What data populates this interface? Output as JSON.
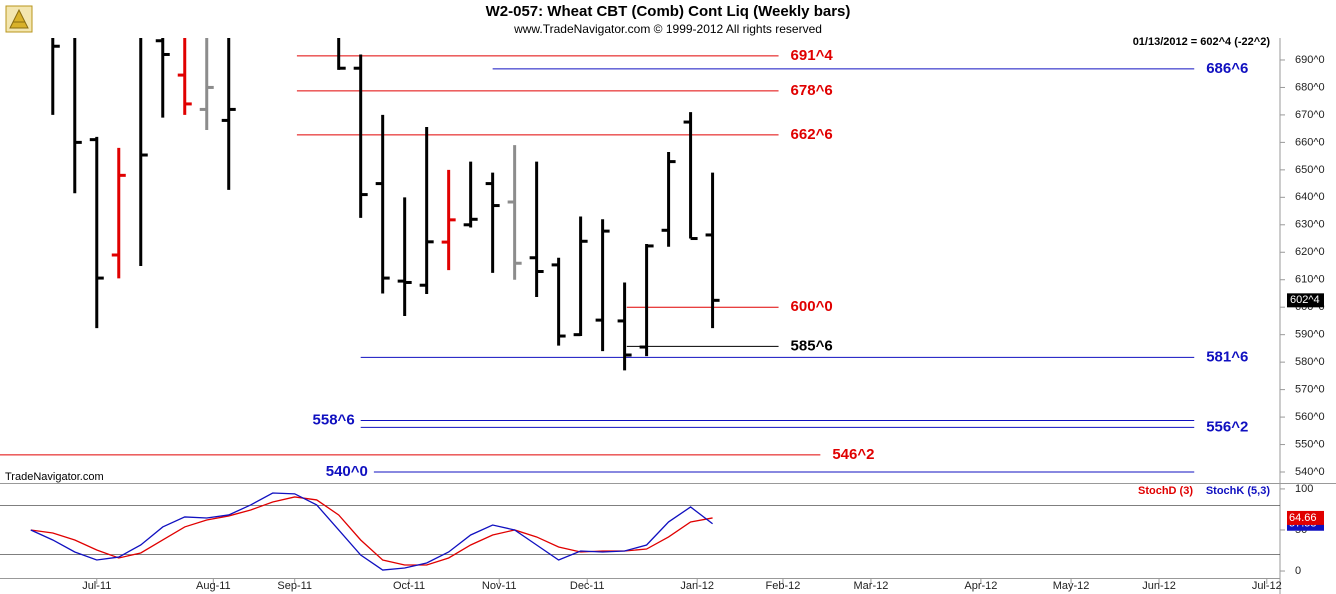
{
  "chart_data": [
    {
      "type": "ohlc",
      "title": "W2-057:  Wheat CBT (Comb) Cont Liq  (Weekly bars)",
      "subtitle": "www.TradeNavigator.com © 1999-2012 All rights reserved",
      "annotation": "01/13/2012 = 602^4 (-22^2)",
      "watermark": "TradeNavigator.com",
      "last_label": "602^4",
      "xlim": [
        -2.4,
        55.8
      ],
      "ylim": [
        536,
        698
      ],
      "yticks": [
        {
          "value": 540,
          "label": "540^0"
        },
        {
          "value": 550,
          "label": "550^0"
        },
        {
          "value": 560,
          "label": "560^0"
        },
        {
          "value": 570,
          "label": "570^0"
        },
        {
          "value": 580,
          "label": "580^0"
        },
        {
          "value": 590,
          "label": "590^0"
        },
        {
          "value": 600,
          "label": "600^0"
        },
        {
          "value": 610,
          "label": "610^0"
        },
        {
          "value": 620,
          "label": "620^0"
        },
        {
          "value": 630,
          "label": "630^0"
        },
        {
          "value": 640,
          "label": "640^0"
        },
        {
          "value": 650,
          "label": "650^0"
        },
        {
          "value": 660,
          "label": "660^0"
        },
        {
          "value": 670,
          "label": "670^0"
        },
        {
          "value": 680,
          "label": "680^0"
        },
        {
          "value": 690,
          "label": "690^0"
        }
      ],
      "x": [
        0,
        1,
        2,
        3,
        4,
        5,
        6,
        7,
        8,
        13,
        14,
        15,
        16,
        17,
        18,
        19,
        20,
        21,
        22,
        23,
        24,
        25,
        26,
        27,
        28,
        29,
        30
      ],
      "open": [
        700,
        700,
        661,
        619,
        700,
        697,
        684.5,
        672,
        668,
        700,
        687,
        645,
        609.5,
        608,
        623.7,
        630,
        645,
        638.3,
        618,
        615.4,
        590,
        595.3,
        595,
        585.5,
        628,
        667.4,
        626.3
      ],
      "high": [
        705,
        705,
        662,
        658,
        705,
        705,
        705,
        705,
        705,
        705,
        692,
        670,
        640,
        665.6,
        650,
        653,
        649,
        659,
        653,
        618,
        633,
        632,
        609,
        623,
        656.5,
        671,
        649
      ],
      "low": [
        670,
        641.5,
        592.4,
        610.5,
        615,
        669,
        670,
        664.5,
        642.7,
        686.4,
        632.5,
        605,
        596.8,
        604.8,
        613.5,
        629,
        612.5,
        610,
        603.7,
        586,
        589.5,
        584,
        577,
        582.2,
        622,
        625,
        592.4
      ],
      "close": [
        695,
        660,
        610.6,
        648,
        655.4,
        692,
        674,
        680,
        672,
        687,
        641,
        610.6,
        609,
        623.8,
        631.8,
        632,
        637,
        616,
        613,
        589.5,
        624,
        627.7,
        582.6,
        622.3,
        653,
        625,
        602.5
      ],
      "colors": [
        "#000000",
        "#000000",
        "#000000",
        "#e00000",
        "#000000",
        "#000000",
        "#e00000",
        "#8c8c8c",
        "#000000",
        "#000000",
        "#000000",
        "#000000",
        "#000000",
        "#000000",
        "#e00000",
        "#000000",
        "#000000",
        "#8c8c8c",
        "#000000",
        "#000000",
        "#000000",
        "#000000",
        "#000000",
        "#000000",
        "#000000",
        "#000000",
        "#000000"
      ],
      "levels": [
        {
          "label": "691^4",
          "value": 691.5,
          "color": "#e00000",
          "x_start": 11.1,
          "x_end": 33.0,
          "label_side": "right"
        },
        {
          "label": "686^6",
          "value": 686.75,
          "color": "#1010c0",
          "x_start": 20.0,
          "x_end": 51.9,
          "label_side": "right"
        },
        {
          "label": "678^6",
          "value": 678.75,
          "color": "#e00000",
          "x_start": 11.1,
          "x_end": 33.0,
          "label_side": "right"
        },
        {
          "label": "662^6",
          "value": 662.75,
          "color": "#e00000",
          "x_start": 11.1,
          "x_end": 33.0,
          "label_side": "right"
        },
        {
          "label": "600^0",
          "value": 600,
          "color": "#e00000",
          "x_start": 26.1,
          "x_end": 33.0,
          "label_side": "right"
        },
        {
          "label": "585^6",
          "value": 585.75,
          "color": "#000000",
          "x_start": 26.1,
          "x_end": 33.0,
          "label_side": "right"
        },
        {
          "label": "581^6",
          "value": 581.75,
          "color": "#1010c0",
          "x_start": 14.0,
          "x_end": 51.9,
          "label_side": "right"
        },
        {
          "label": "558^6",
          "value": 558.75,
          "color": "#1010c0",
          "x_start": 14.0,
          "x_end": 51.9,
          "label_side": "left"
        },
        {
          "label": "556^2",
          "value": 556.25,
          "color": "#1010c0",
          "x_start": 14.0,
          "x_end": 51.9,
          "label_side": "right"
        },
        {
          "label": "546^2",
          "value": 546.25,
          "color": "#e00000",
          "x_start": -2.4,
          "x_end": 34.9,
          "label_side": "right"
        },
        {
          "label": "540^0",
          "value": 540,
          "color": "#1010c0",
          "x_start": 14.6,
          "x_end": 51.9,
          "label_side": "left"
        }
      ]
    },
    {
      "type": "line",
      "xlim": [
        -2.4,
        55.8
      ],
      "ylim": [
        -8.5,
        106
      ],
      "yticks": [
        0,
        50,
        100
      ],
      "levels": [
        80,
        20
      ],
      "xticks": [
        {
          "value": 2,
          "label": "Jul-11"
        },
        {
          "value": 7.3,
          "label": "Aug-11"
        },
        {
          "value": 11,
          "label": "Sep-11"
        },
        {
          "value": 16.2,
          "label": "Oct-11"
        },
        {
          "value": 20.3,
          "label": "Nov-11"
        },
        {
          "value": 24.3,
          "label": "Dec-11"
        },
        {
          "value": 29.3,
          "label": "Jan-12"
        },
        {
          "value": 33.2,
          "label": "Feb-12"
        },
        {
          "value": 37.2,
          "label": "Mar-12"
        },
        {
          "value": 42.2,
          "label": "Apr-12"
        },
        {
          "value": 46.3,
          "label": "May-12"
        },
        {
          "value": 50.3,
          "label": "Jun-12"
        },
        {
          "value": 55.2,
          "label": "Jul-12"
        }
      ],
      "x": [
        -1,
        0,
        1,
        2,
        3,
        4,
        5,
        6,
        7,
        8,
        9,
        10,
        11,
        12,
        13,
        14,
        15,
        16,
        17,
        18,
        19,
        20,
        21,
        22,
        23,
        24,
        25,
        26,
        27,
        28,
        29,
        30
      ],
      "series": [
        {
          "name": "StochD (3)",
          "color": "#e00000",
          "values": [
            50,
            46.3,
            37.8,
            25.6,
            15.9,
            22,
            37.8,
            53.7,
            62.2,
            67.1,
            74.4,
            84.1,
            90.2,
            86.6,
            68.3,
            37.8,
            13.4,
            7.3,
            7.3,
            15.9,
            31.7,
            43.9,
            50,
            41.5,
            29.3,
            23.2,
            24.4,
            24.4,
            26.8,
            41.5,
            59.8,
            64.66
          ]
        },
        {
          "name": "StochK (5,3)",
          "color": "#1010c0",
          "values": [
            50,
            37.8,
            23.2,
            13.4,
            17,
            31.7,
            53.7,
            65.9,
            64.6,
            68.3,
            80.5,
            95,
            94,
            80.5,
            50,
            19.5,
            1.2,
            3.7,
            9.8,
            23.2,
            43.9,
            56,
            50,
            31.7,
            13.4,
            24.4,
            23.2,
            24.4,
            31.7,
            59.8,
            78,
            57.58
          ]
        }
      ]
    }
  ]
}
